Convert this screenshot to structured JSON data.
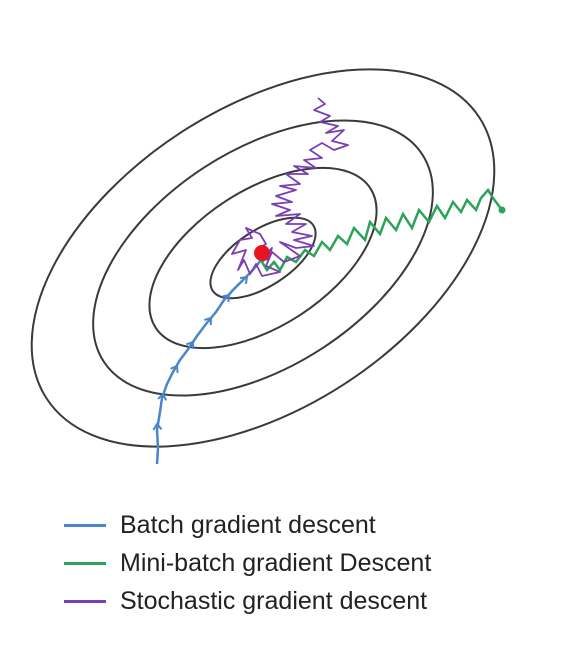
{
  "legend": {
    "items": [
      {
        "label": "Batch gradient descent",
        "color": "#4a86c8"
      },
      {
        "label": "Mini-batch gradient Descent",
        "color": "#2ba35a"
      },
      {
        "label": "Stochastic gradient descent",
        "color": "#7a3fb5"
      }
    ]
  },
  "colors": {
    "contour": "#3a3a3a",
    "minimum": "#e6161e",
    "batch": "#4a86c8",
    "minibatch": "#2ba35a",
    "stochastic": "#7a3fb5"
  },
  "icons": {
    "minimum": "red-dot-icon",
    "direction": "arrowhead-icon"
  }
}
